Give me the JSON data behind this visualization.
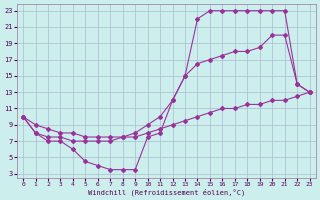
{
  "background_color": "#cceeed",
  "grid_color": "#aabbcc",
  "line_color": "#993399",
  "xlim_min": -0.5,
  "xlim_max": 23.5,
  "ylim_min": 2.5,
  "ylim_max": 23.8,
  "xticks": [
    0,
    1,
    2,
    3,
    4,
    5,
    6,
    7,
    8,
    9,
    10,
    11,
    12,
    13,
    14,
    15,
    16,
    17,
    18,
    19,
    20,
    21,
    22,
    23
  ],
  "yticks": [
    3,
    5,
    7,
    9,
    11,
    13,
    15,
    17,
    19,
    21,
    23
  ],
  "xlabel": "Windchill (Refroidissement éolien,°C)",
  "line1_x": [
    0,
    1,
    2,
    3,
    4,
    5,
    6,
    7,
    8,
    9,
    10,
    11,
    12,
    13,
    14,
    15,
    16,
    17,
    18,
    19,
    20,
    21,
    22,
    23
  ],
  "line1_y": [
    10,
    8,
    7,
    7,
    6,
    4.5,
    4,
    3.5,
    3.5,
    3.5,
    7.5,
    8,
    12,
    15,
    22,
    23,
    23,
    23,
    23,
    23,
    23,
    23,
    14,
    13
  ],
  "line2_x": [
    0,
    1,
    2,
    3,
    4,
    5,
    6,
    7,
    8,
    9,
    10,
    11,
    12,
    13,
    14,
    15,
    16,
    17,
    18,
    19,
    20,
    21,
    22,
    23
  ],
  "line2_y": [
    10,
    9,
    8.5,
    8,
    8,
    7.5,
    7.5,
    7.5,
    7.5,
    7.5,
    8,
    8.5,
    9,
    9.5,
    10,
    10.5,
    11,
    11,
    11.5,
    11.5,
    12,
    12,
    12.5,
    13
  ],
  "line3_x": [
    0,
    1,
    2,
    3,
    4,
    5,
    6,
    7,
    8,
    9,
    10,
    11,
    12,
    13,
    14,
    15,
    16,
    17,
    18,
    19,
    20,
    21,
    22,
    23
  ],
  "line3_y": [
    10,
    8,
    7.5,
    7.5,
    7,
    7,
    7,
    7,
    7.5,
    8,
    9,
    10,
    12,
    15,
    16.5,
    17,
    17.5,
    18,
    18,
    18.5,
    20,
    20,
    14,
    13
  ]
}
